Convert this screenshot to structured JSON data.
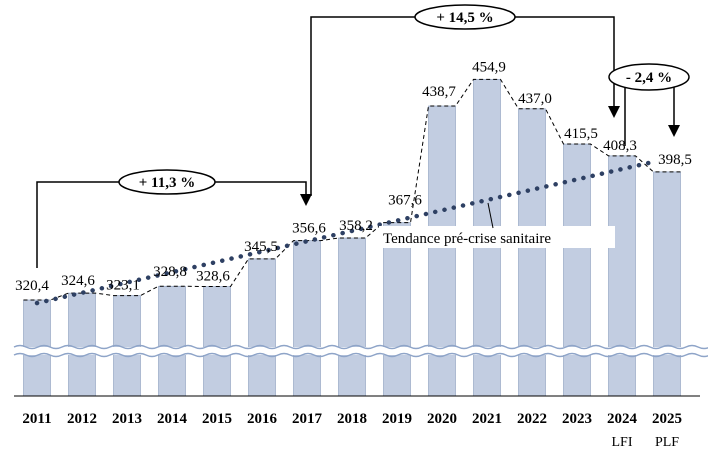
{
  "chart_data": {
    "type": "bar",
    "categories": [
      "2011",
      "2012",
      "2013",
      "2014",
      "2015",
      "2016",
      "2017",
      "2018",
      "2019",
      "2020",
      "2021",
      "2022",
      "2023",
      "2024",
      "2025"
    ],
    "sub_labels": [
      "",
      "",
      "",
      "",
      "",
      "",
      "",
      "",
      "",
      "",
      "",
      "",
      "",
      "LFI",
      "PLF"
    ],
    "values": [
      320.4,
      324.6,
      323.1,
      328.8,
      328.6,
      345.5,
      356.6,
      358.2,
      367.6,
      438.7,
      454.9,
      437.0,
      415.5,
      408.3,
      398.5
    ],
    "value_labels": [
      "320,4",
      "324,6",
      "323,1",
      "328,8",
      "328,6",
      "345,5",
      "356,6",
      "358,2",
      "367,6",
      "438,7",
      "454,9",
      "437,0",
      "415,5",
      "408,3",
      "398,5"
    ],
    "trend": {
      "label": "Tendance pré-crise sanitaire",
      "start": 318.5,
      "end": 404.0
    },
    "annotations": [
      {
        "text": "+ 11,3 %",
        "from": "2011",
        "to": "2017"
      },
      {
        "text": "+ 14,5 %",
        "from": "2017",
        "to": "2024"
      },
      {
        "text": "- 2,4 %",
        "from": "2024",
        "to": "2025"
      }
    ],
    "axis_break": true,
    "colors": {
      "bar": "#c2cde1",
      "bar_stroke": "#8a9dbd",
      "trend": "#2e4063",
      "connector": "#000000",
      "break_line": "#8ea4c8"
    }
  }
}
